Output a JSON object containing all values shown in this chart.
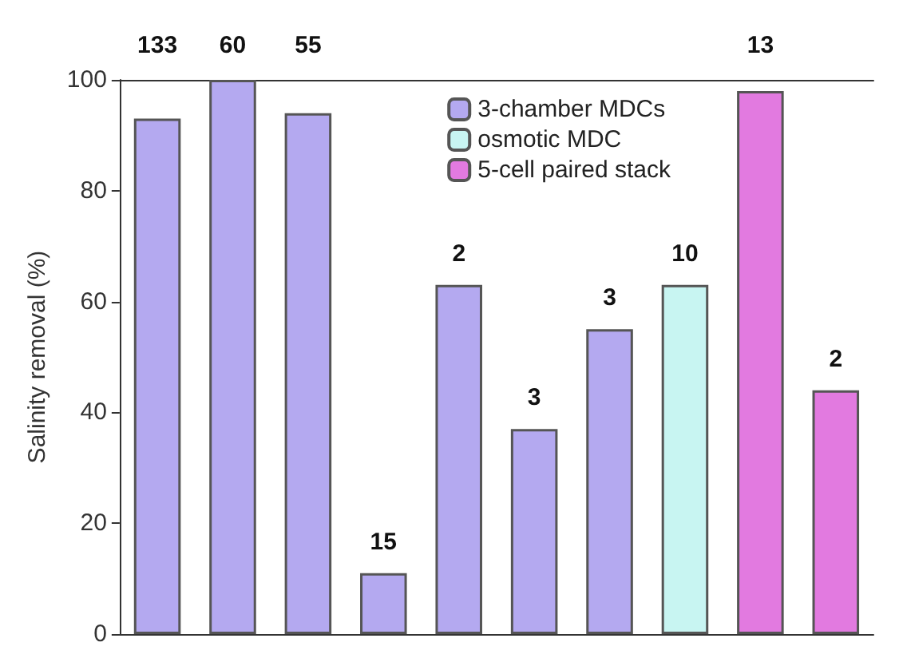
{
  "chart_data": {
    "type": "bar",
    "ylabel": "Salinity removal (%)",
    "categories": [
      null,
      null,
      null,
      null,
      null,
      null,
      null,
      null,
      null,
      null
    ],
    "series": [
      {
        "name": "3-chamber MDCs",
        "color": "#b4a9f0",
        "values": [
          93,
          100,
          94,
          11,
          63,
          37,
          55,
          null,
          null,
          null
        ]
      },
      {
        "name": "osmotic MDC",
        "color": "#c8f5f2",
        "values": [
          null,
          null,
          null,
          null,
          null,
          null,
          null,
          63,
          null,
          null
        ]
      },
      {
        "name": "5-cell paired stack",
        "color": "#e27ae0",
        "values": [
          null,
          null,
          null,
          null,
          null,
          null,
          null,
          null,
          98,
          44
        ]
      }
    ],
    "annotations": [
      {
        "text": "133",
        "y": 93
      },
      {
        "text": "60",
        "y": 100
      },
      {
        "text": "55",
        "y": 94
      },
      {
        "text": "15",
        "y": 11
      },
      {
        "text": "2",
        "y": 63
      },
      {
        "text": "3",
        "y": 37
      },
      {
        "text": "3",
        "y": 55
      },
      {
        "text": "10",
        "y": 63
      },
      {
        "text": "13",
        "y": 98
      },
      {
        "text": "2",
        "y": 44
      }
    ],
    "ylim": [
      0,
      100
    ],
    "yticks": [
      0,
      20,
      40,
      60,
      80,
      100
    ],
    "grid": false,
    "legend": "top right",
    "tick_labels": "y"
  }
}
